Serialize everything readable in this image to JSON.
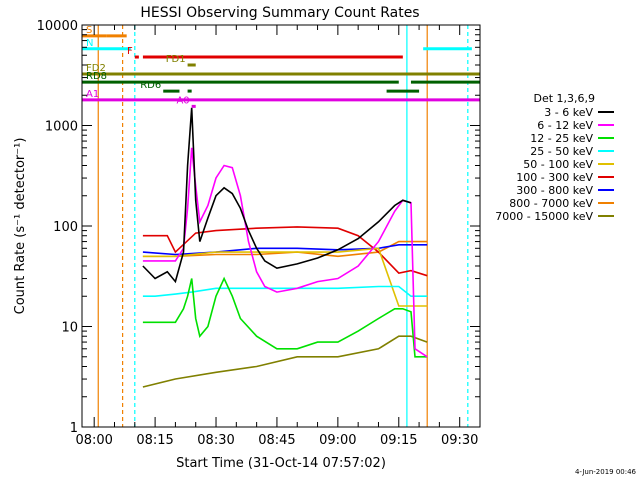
{
  "chart_data": {
    "type": "line",
    "title": "HESSI Observing Summary Count Rates",
    "xlabel": "Start Time (31-Oct-14 07:57:02)",
    "ylabel": "Count Rate (s⁻¹ detector⁻¹)",
    "xlim": [
      "07:57",
      "09:35"
    ],
    "ylim": [
      1,
      10000
    ],
    "yscale": "log",
    "x_ticks": [
      "08:00",
      "08:15",
      "08:30",
      "08:45",
      "09:00",
      "09:15",
      "09:30"
    ],
    "y_ticks": [
      "1",
      "10",
      "100",
      "1000",
      "10000"
    ],
    "grid": false,
    "legend": {
      "placement": "right",
      "title": "Det 1,3,6,9",
      "entries": [
        {
          "name": "3 - 6 keV",
          "color": "#000000"
        },
        {
          "name": "6 - 12 keV",
          "color": "#ff00ff"
        },
        {
          "name": "12 - 25 keV",
          "color": "#00e000"
        },
        {
          "name": "25 - 50 keV",
          "color": "#00ffff"
        },
        {
          "name": "50 - 100 keV",
          "color": "#e0c000"
        },
        {
          "name": "100 - 300 keV",
          "color": "#e00000"
        },
        {
          "name": "300 - 800 keV",
          "color": "#0000ff"
        },
        {
          "name": "800 - 7000 keV",
          "color": "#f08000"
        },
        {
          "name": "7000 - 15000 keV",
          "color": "#808000"
        }
      ]
    },
    "series": [
      {
        "name": "3 - 6 keV",
        "color": "#000000",
        "x": [
          "08:12",
          "08:15",
          "08:18",
          "08:20",
          "08:22",
          "08:23",
          "08:24",
          "08:25",
          "08:26",
          "08:28",
          "08:30",
          "08:32",
          "08:34",
          "08:36",
          "08:38",
          "08:40",
          "08:42",
          "08:45",
          "08:50",
          "08:55",
          "09:00",
          "09:05",
          "09:10",
          "09:14",
          "09:16",
          "09:18"
        ],
        "values": [
          40,
          30,
          35,
          28,
          55,
          400,
          1500,
          180,
          70,
          120,
          200,
          240,
          210,
          150,
          90,
          60,
          45,
          38,
          42,
          48,
          58,
          75,
          110,
          160,
          180,
          170
        ]
      },
      {
        "name": "6 - 12 keV",
        "color": "#ff00ff",
        "x": [
          "08:12",
          "08:15",
          "08:18",
          "08:20",
          "08:22",
          "08:23",
          "08:24",
          "08:25",
          "08:26",
          "08:28",
          "08:30",
          "08:32",
          "08:34",
          "08:36",
          "08:38",
          "08:40",
          "08:42",
          "08:45",
          "08:50",
          "08:55",
          "09:00",
          "09:05",
          "09:10",
          "09:14",
          "09:16",
          "09:18",
          "09:19",
          "09:22"
        ],
        "values": [
          45,
          45,
          45,
          45,
          60,
          150,
          600,
          250,
          110,
          160,
          300,
          400,
          380,
          200,
          70,
          35,
          25,
          22,
          24,
          28,
          30,
          40,
          70,
          140,
          180,
          170,
          6,
          5
        ]
      },
      {
        "name": "12 - 25 keV",
        "color": "#00e000",
        "x": [
          "08:12",
          "08:15",
          "08:18",
          "08:20",
          "08:22",
          "08:23",
          "08:24",
          "08:25",
          "08:26",
          "08:28",
          "08:30",
          "08:32",
          "08:34",
          "08:36",
          "08:40",
          "08:45",
          "08:50",
          "08:55",
          "09:00",
          "09:05",
          "09:10",
          "09:14",
          "09:16",
          "09:18",
          "09:19",
          "09:22"
        ],
        "values": [
          11,
          11,
          11,
          11,
          15,
          20,
          30,
          12,
          8,
          10,
          20,
          30,
          20,
          12,
          8,
          6,
          6,
          7,
          7,
          9,
          12,
          15,
          15,
          14,
          5,
          5
        ]
      },
      {
        "name": "25 - 50 keV",
        "color": "#00ffff",
        "x": [
          "08:12",
          "08:15",
          "08:20",
          "08:24",
          "08:30",
          "08:40",
          "08:50",
          "09:00",
          "09:10",
          "09:15",
          "09:18",
          "09:22"
        ],
        "values": [
          20,
          20,
          21,
          22,
          24,
          24,
          24,
          24,
          25,
          25,
          20,
          20
        ]
      },
      {
        "name": "50 - 100 keV",
        "color": "#e0c000",
        "x": [
          "08:12",
          "08:20",
          "08:30",
          "08:40",
          "08:50",
          "09:00",
          "09:10",
          "09:15",
          "09:18",
          "09:22"
        ],
        "values": [
          50,
          50,
          55,
          55,
          55,
          55,
          60,
          16,
          16,
          16
        ]
      },
      {
        "name": "100 - 300 keV",
        "color": "#e00000",
        "x": [
          "08:12",
          "08:15",
          "08:18",
          "08:20",
          "08:25",
          "08:30",
          "08:40",
          "08:50",
          "09:00",
          "09:05",
          "09:10",
          "09:15",
          "09:18",
          "09:22"
        ],
        "values": [
          80,
          80,
          80,
          55,
          85,
          90,
          95,
          98,
          95,
          80,
          55,
          34,
          36,
          32
        ]
      },
      {
        "name": "300 - 800 keV",
        "color": "#0000ff",
        "x": [
          "08:12",
          "08:20",
          "08:30",
          "08:40",
          "08:50",
          "09:00",
          "09:10",
          "09:15",
          "09:18",
          "09:22"
        ],
        "values": [
          55,
          52,
          55,
          60,
          60,
          58,
          60,
          65,
          65,
          65
        ]
      },
      {
        "name": "800 - 7000 keV",
        "color": "#f08000",
        "x": [
          "08:12",
          "08:20",
          "08:30",
          "08:40",
          "08:50",
          "09:00",
          "09:10",
          "09:15",
          "09:18",
          "09:22"
        ],
        "values": [
          50,
          50,
          52,
          52,
          55,
          50,
          55,
          70,
          70,
          70
        ]
      },
      {
        "name": "7000 - 15000 keV",
        "color": "#808000",
        "x": [
          "08:12",
          "08:20",
          "08:30",
          "08:40",
          "08:50",
          "09:00",
          "09:10",
          "09:15",
          "09:18",
          "09:22"
        ],
        "values": [
          2.5,
          3,
          3.5,
          4,
          5,
          5,
          6,
          8,
          8,
          7
        ]
      }
    ],
    "flag_bars": [
      {
        "label": "S",
        "color": "#f08000",
        "y": 7800,
        "segments": [
          [
            "07:57",
            "08:03"
          ],
          [
            "08:03",
            "08:08"
          ]
        ]
      },
      {
        "label": "N",
        "color": "#00ffff",
        "y": 5800,
        "segments": [
          [
            "07:57",
            "08:09"
          ],
          [
            "09:21",
            "09:33"
          ]
        ]
      },
      {
        "label": "F",
        "color": "#e00000",
        "y": 4800,
        "segments": [
          [
            "08:10",
            "08:11"
          ],
          [
            "08:12",
            "09:16"
          ]
        ]
      },
      {
        "label": "FD1",
        "color": "#808000",
        "y": 4000,
        "segments": [
          [
            "08:23",
            "08:25"
          ]
        ]
      },
      {
        "label": "FD2",
        "color": "#808000",
        "y": 3250,
        "segments": [
          [
            "07:57",
            "09:35"
          ]
        ]
      },
      {
        "label": "RD8",
        "color": "#006000",
        "y": 2700,
        "segments": [
          [
            "07:57",
            "09:15"
          ],
          [
            "09:18",
            "09:35"
          ]
        ]
      },
      {
        "label": "RD6",
        "color": "#006000",
        "y": 2200,
        "segments": [
          [
            "08:17",
            "08:21"
          ],
          [
            "08:23",
            "08:24"
          ],
          [
            "09:12",
            "09:20"
          ]
        ]
      },
      {
        "label": "A1",
        "color": "#e000e0",
        "y": 1800,
        "segments": [
          [
            "07:57",
            "09:35"
          ]
        ]
      },
      {
        "label": "A0",
        "color": "#e000e0",
        "y": 1550,
        "segments": [
          [
            "08:24",
            "08:25"
          ]
        ]
      }
    ],
    "vertical_markers": [
      {
        "x": "08:01",
        "color": "#f08000",
        "style": "solid"
      },
      {
        "x": "08:07",
        "color": "#f08000",
        "style": "dashed"
      },
      {
        "x": "08:10",
        "color": "#00ffff",
        "style": "dashed"
      },
      {
        "x": "09:17",
        "color": "#00ffff",
        "style": "solid"
      },
      {
        "x": "09:32",
        "color": "#00ffff",
        "style": "dashed"
      },
      {
        "x": "09:22",
        "color": "#f08000",
        "style": "solid"
      }
    ],
    "footer_date": "4-Jun-2019 00:46"
  }
}
